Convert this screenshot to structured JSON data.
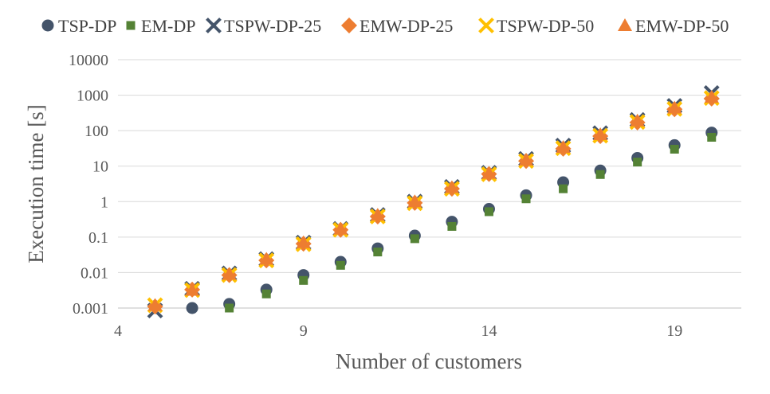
{
  "chart_data": {
    "type": "scatter",
    "title": "",
    "xlabel": "Number of customers",
    "ylabel": "Execution time [s]",
    "x_ticks": [
      "4",
      "9",
      "14",
      "19"
    ],
    "y_ticks": [
      "0.001",
      "0.01",
      "0.1",
      "1",
      "10",
      "100",
      "1000",
      "10000"
    ],
    "xlim": [
      4,
      20.8
    ],
    "ylim": [
      0.001,
      10000
    ],
    "y_scale": "log",
    "grid": "horizontal",
    "legend_position": "top",
    "series": [
      {
        "name": "TSP-DP",
        "marker": "circle",
        "color": "#44546A",
        "x": [
          6,
          7,
          8,
          9,
          10,
          11,
          12,
          13,
          14,
          15,
          16,
          17,
          18,
          19,
          20
        ],
        "y": [
          0.001,
          0.0013,
          0.0033,
          0.0085,
          0.02,
          0.048,
          0.11,
          0.27,
          0.62,
          1.5,
          3.5,
          7.5,
          17,
          39,
          88
        ]
      },
      {
        "name": "EM-DP",
        "marker": "square",
        "color": "#548235",
        "x": [
          7,
          8,
          9,
          10,
          11,
          12,
          13,
          14,
          15,
          16,
          17,
          18,
          19,
          20
        ],
        "y": [
          0.001,
          0.0025,
          0.006,
          0.016,
          0.038,
          0.09,
          0.2,
          0.52,
          1.2,
          2.3,
          5.8,
          13,
          30,
          65
        ]
      },
      {
        "name": "TSPW-DP-25",
        "marker": "x",
        "color": "#44546A",
        "x": [
          5,
          6,
          7,
          8,
          9,
          10,
          11,
          12,
          13,
          14,
          15,
          16,
          17,
          18,
          19,
          20
        ],
        "y": [
          0.00085,
          0.0035,
          0.0095,
          0.024,
          0.07,
          0.17,
          0.42,
          1.0,
          2.6,
          6.5,
          16,
          38,
          85,
          200,
          500,
          1150
        ]
      },
      {
        "name": "EMW-DP-25",
        "marker": "diamond",
        "color": "#ED7D31",
        "x": [
          5,
          6,
          7,
          8,
          9,
          10,
          11,
          12,
          13,
          14,
          15,
          16,
          17,
          18,
          19,
          20
        ],
        "y": [
          0.0011,
          0.0033,
          0.0085,
          0.022,
          0.065,
          0.16,
          0.38,
          0.92,
          2.3,
          6.0,
          14,
          31,
          70,
          170,
          400,
          800
        ]
      },
      {
        "name": "TSPW-DP-50",
        "marker": "x",
        "color": "#FFC000",
        "x": [
          5,
          6,
          7,
          8,
          9,
          10,
          11,
          12,
          13,
          14,
          15,
          16,
          17,
          18,
          19,
          20
        ],
        "y": [
          0.0012,
          0.0032,
          0.0085,
          0.022,
          0.063,
          0.16,
          0.38,
          0.9,
          2.3,
          5.9,
          14,
          32,
          72,
          175,
          410,
          830
        ]
      },
      {
        "name": "EMW-DP-50",
        "marker": "triangle",
        "color": "#ED7D31",
        "x": [
          5,
          6,
          7,
          8,
          9,
          10,
          11,
          12,
          13,
          14,
          15,
          16,
          17,
          18,
          19,
          20
        ],
        "y": [
          0.0012,
          0.0032,
          0.009,
          0.024,
          0.07,
          0.17,
          0.42,
          1.0,
          2.5,
          6.3,
          15,
          34,
          78,
          190,
          440,
          880
        ]
      }
    ]
  }
}
